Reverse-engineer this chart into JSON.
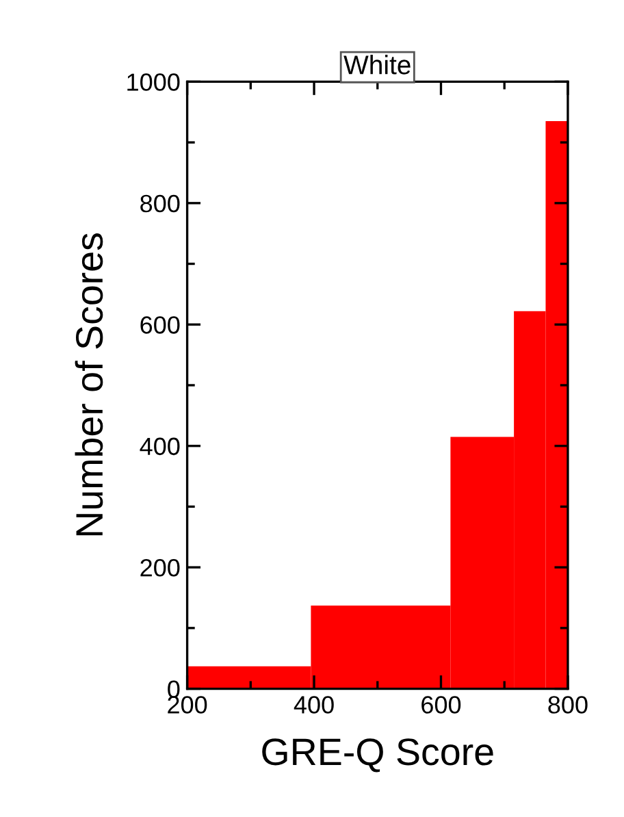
{
  "chart_data": {
    "type": "histogram",
    "title": "White",
    "xlabel": "GRE-Q Score",
    "ylabel": "Number of Scores",
    "bins": [
      200,
      395,
      615,
      715,
      765,
      800
    ],
    "values": [
      37,
      137,
      415,
      622,
      935
    ],
    "color": "#ff0000",
    "xlim": [
      200,
      800
    ],
    "ylim": [
      0,
      1000
    ],
    "xticks": [
      200,
      {
        "value": 300,
        "label": null
      },
      400,
      {
        "value": 500,
        "label": null
      },
      600,
      {
        "value": 700,
        "label": null
      },
      800
    ],
    "yticks": [
      0,
      {
        "value": 100,
        "label": null
      },
      200,
      {
        "value": 300,
        "label": null
      },
      400,
      {
        "value": 500,
        "label": null
      },
      600,
      {
        "value": 700,
        "label": null
      },
      800,
      {
        "value": 900,
        "label": null
      },
      1000
    ],
    "grid": false,
    "legend": false
  }
}
